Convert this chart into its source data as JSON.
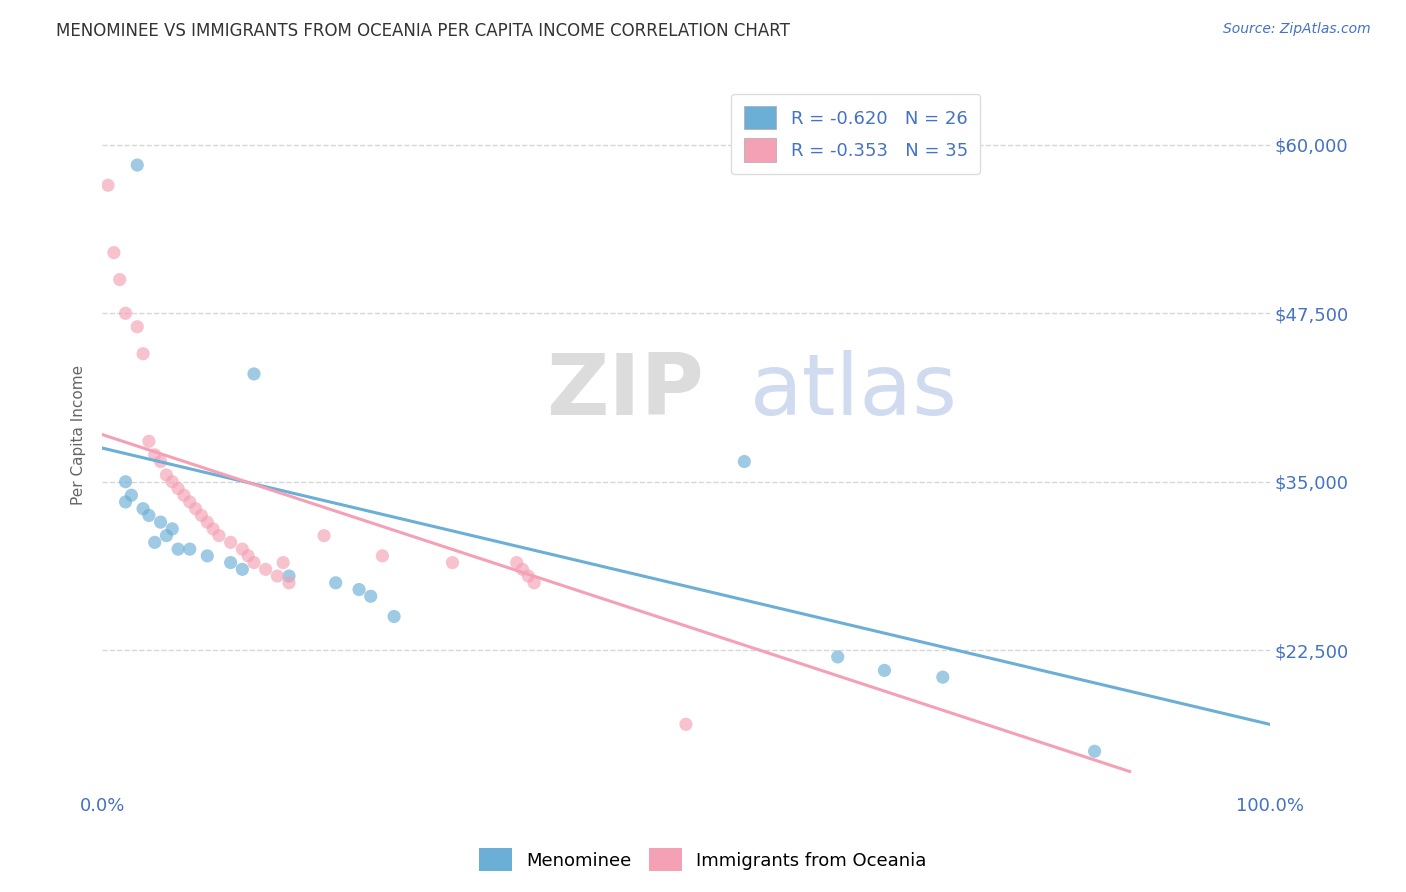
{
  "title": "MENOMINEE VS IMMIGRANTS FROM OCEANIA PER CAPITA INCOME CORRELATION CHART",
  "source": "Source: ZipAtlas.com",
  "ylabel": "Per Capita Income",
  "watermark_zip": "ZIP",
  "watermark_atlas": "atlas",
  "xlim": [
    0.0,
    100.0
  ],
  "ylim": [
    12000,
    65000
  ],
  "yticks": [
    22500,
    35000,
    47500,
    60000
  ],
  "ytick_labels": [
    "$22,500",
    "$35,000",
    "$47,500",
    "$60,000"
  ],
  "legend_blue_label": "R = -0.620   N = 26",
  "legend_pink_label": "R = -0.353   N = 35",
  "bottom_legend_blue": "Menominee",
  "bottom_legend_pink": "Immigrants from Oceania",
  "blue_color": "#6baed6",
  "pink_color": "#f4a0b5",
  "axis_color": "#4472c4",
  "grid_color": "#cccccc",
  "background_color": "#ffffff",
  "blue_scatter_x": [
    3.0,
    13.0,
    2.0,
    2.5,
    2.0,
    3.5,
    4.0,
    5.0,
    6.0,
    5.5,
    4.5,
    6.5,
    7.5,
    9.0,
    11.0,
    12.0,
    16.0,
    20.0,
    22.0,
    23.0,
    25.0,
    55.0,
    63.0,
    67.0,
    72.0,
    85.0
  ],
  "blue_scatter_y": [
    58500,
    43000,
    35000,
    34000,
    33500,
    33000,
    32500,
    32000,
    31500,
    31000,
    30500,
    30000,
    30000,
    29500,
    29000,
    28500,
    28000,
    27500,
    27000,
    26500,
    25000,
    36500,
    22000,
    21000,
    20500,
    15000
  ],
  "pink_scatter_x": [
    0.5,
    1.0,
    1.5,
    2.0,
    3.0,
    3.5,
    4.0,
    4.5,
    5.0,
    5.5,
    6.0,
    6.5,
    7.0,
    7.5,
    8.0,
    8.5,
    9.0,
    9.5,
    10.0,
    11.0,
    12.0,
    12.5,
    13.0,
    14.0,
    15.0,
    15.5,
    16.0,
    19.0,
    24.0,
    30.0,
    35.5,
    36.0,
    36.5,
    37.0,
    50.0
  ],
  "pink_scatter_y": [
    57000,
    52000,
    50000,
    47500,
    46500,
    44500,
    38000,
    37000,
    36500,
    35500,
    35000,
    34500,
    34000,
    33500,
    33000,
    32500,
    32000,
    31500,
    31000,
    30500,
    30000,
    29500,
    29000,
    28500,
    28000,
    29000,
    27500,
    31000,
    29500,
    29000,
    29000,
    28500,
    28000,
    27500,
    17000
  ],
  "blue_line_x": [
    0,
    100
  ],
  "blue_line_y": [
    37500,
    17000
  ],
  "pink_line_x": [
    0,
    88
  ],
  "pink_line_y": [
    38500,
    13500
  ]
}
